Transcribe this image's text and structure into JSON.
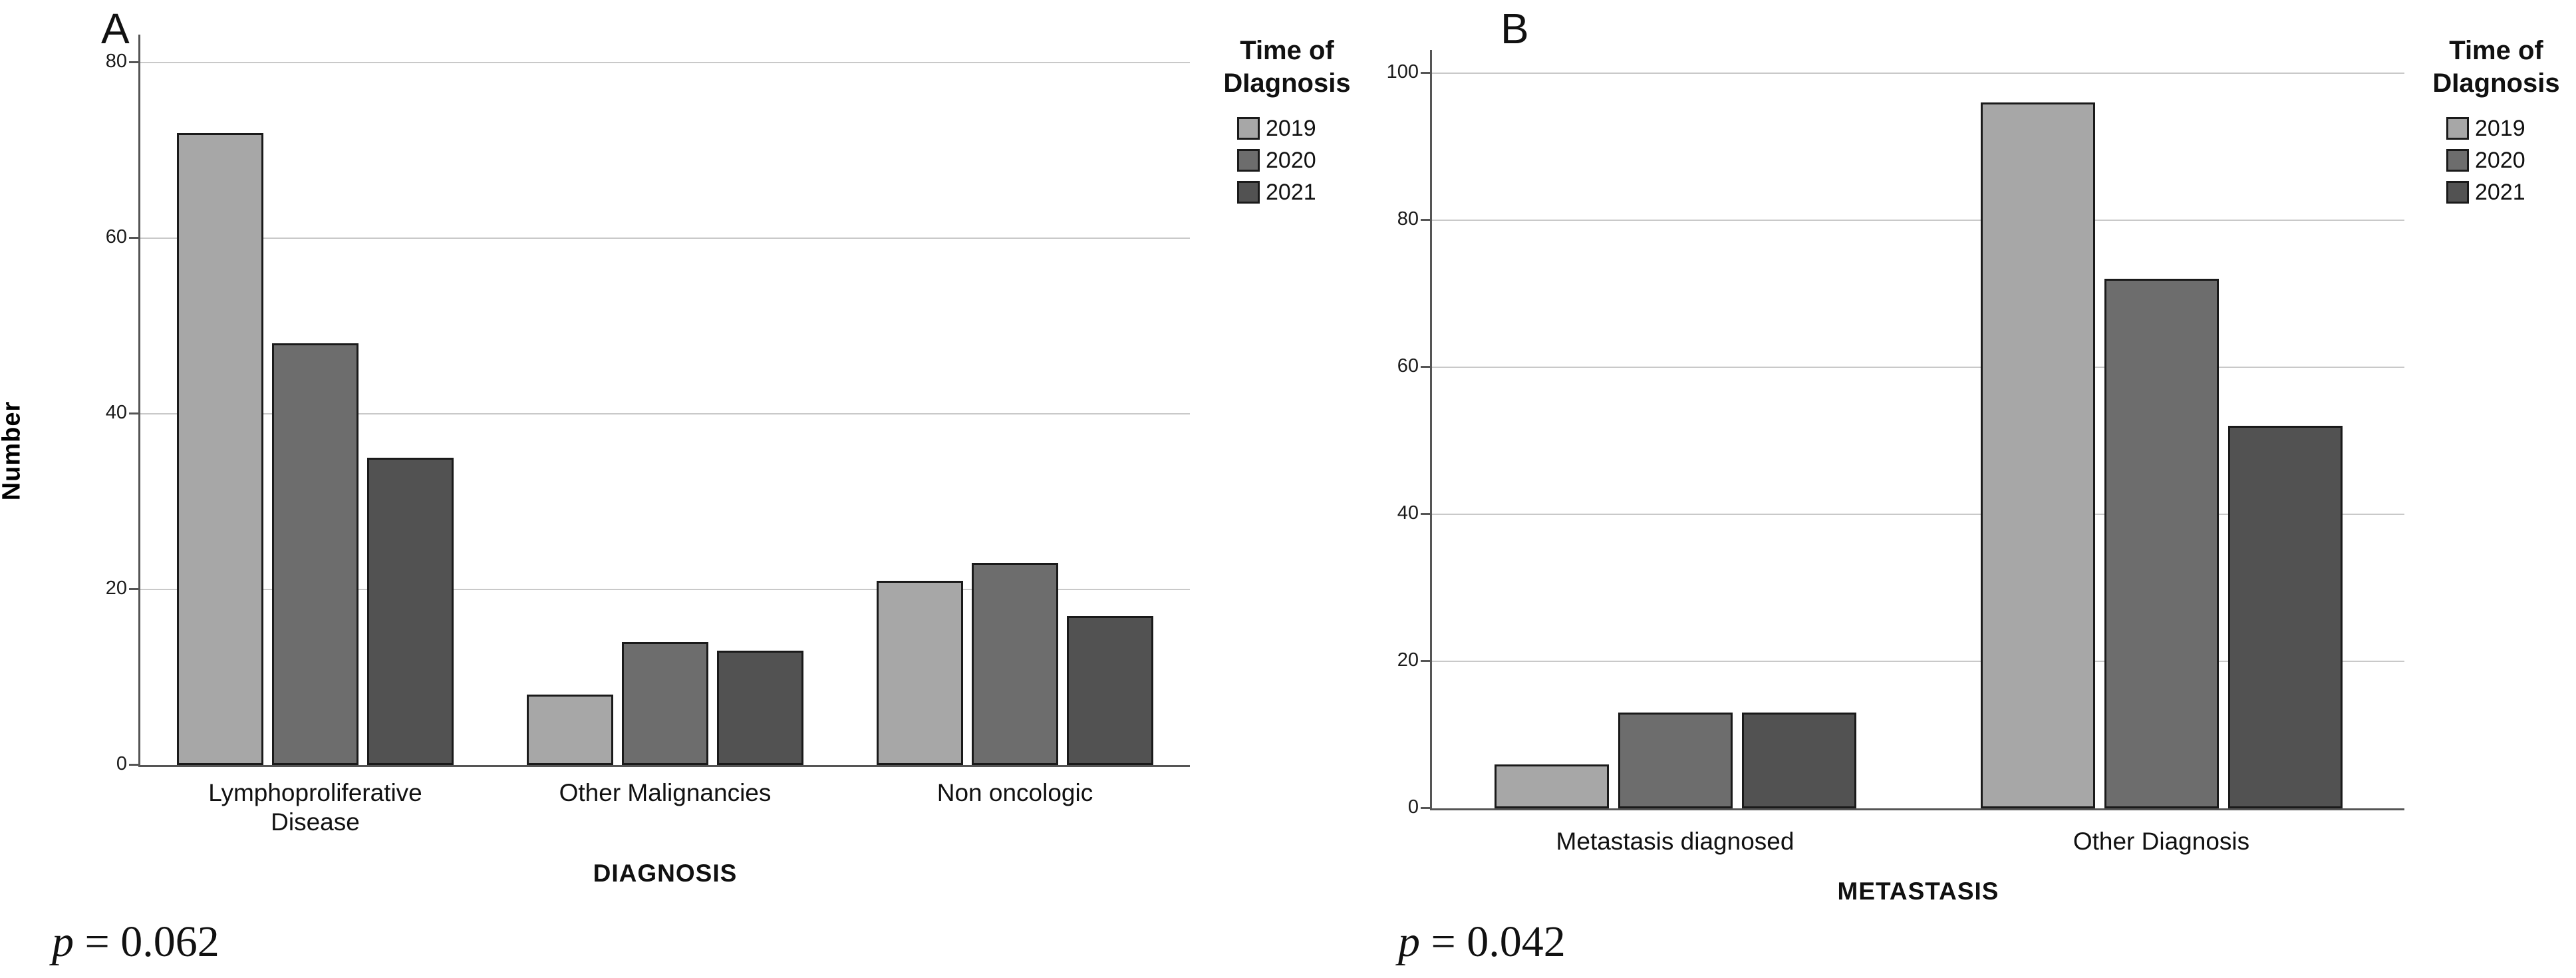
{
  "figure": {
    "background": "#ffffff",
    "series_colors": [
      "#a7a7a7",
      "#6d6d6d",
      "#525252"
    ],
    "bar_border_color": "#1a1a1a",
    "gridline_color": "#c9c9c9",
    "axis_color": "#555555"
  },
  "panels": [
    {
      "panel_label": "A",
      "y_axis_label": "Number",
      "x_axis_title": "DIAGNOSIS",
      "p_value": {
        "symbol": "p",
        "rest": " = 0.062"
      },
      "legend": {
        "title_lines": [
          "Time of",
          "DIagnosis"
        ],
        "entries": [
          "2019",
          "2020",
          "2021"
        ]
      },
      "chart_data": {
        "type": "bar",
        "title": "A",
        "categories": [
          "Lymphoproliferative Disease",
          "Other Malignancies",
          "Non oncologic"
        ],
        "category_label_lines": [
          [
            "Lymphoproliferative",
            "Disease"
          ],
          [
            "Other Malignancies"
          ],
          [
            "Non oncologic"
          ]
        ],
        "series": [
          {
            "name": "2019",
            "values": [
              72,
              8,
              21
            ]
          },
          {
            "name": "2020",
            "values": [
              48,
              14,
              23
            ]
          },
          {
            "name": "2021",
            "values": [
              35,
              13,
              17
            ]
          }
        ],
        "xlabel": "DIAGNOSIS",
        "ylabel": "Number",
        "ylim": [
          0,
          80
        ],
        "y_ticks": [
          0,
          20,
          40,
          60,
          80
        ],
        "grid": true,
        "legend_position": "right",
        "legend_title": "Time of DIagnosis",
        "annotation": "p = 0.062"
      }
    },
    {
      "panel_label": "B",
      "y_axis_label": "",
      "x_axis_title": "METASTASIS",
      "p_value": {
        "symbol": "p",
        "rest": " = 0.042"
      },
      "legend": {
        "title_lines": [
          "Time of",
          "DIagnosis"
        ],
        "entries": [
          "2019",
          "2020",
          "2021"
        ]
      },
      "chart_data": {
        "type": "bar",
        "title": "B",
        "categories": [
          "Metastasis diagnosed",
          "Other Diagnosis"
        ],
        "category_label_lines": [
          [
            "Metastasis diagnosed"
          ],
          [
            "Other Diagnosis"
          ]
        ],
        "series": [
          {
            "name": "2019",
            "values": [
              6,
              96
            ]
          },
          {
            "name": "2020",
            "values": [
              13,
              72
            ]
          },
          {
            "name": "2021",
            "values": [
              13,
              52
            ]
          }
        ],
        "xlabel": "METASTASIS",
        "ylabel": "",
        "ylim": [
          0,
          100
        ],
        "y_ticks": [
          0,
          20,
          40,
          60,
          80,
          100
        ],
        "grid": true,
        "legend_position": "right",
        "legend_title": "Time of DIagnosis",
        "annotation": "p = 0.042"
      }
    }
  ]
}
